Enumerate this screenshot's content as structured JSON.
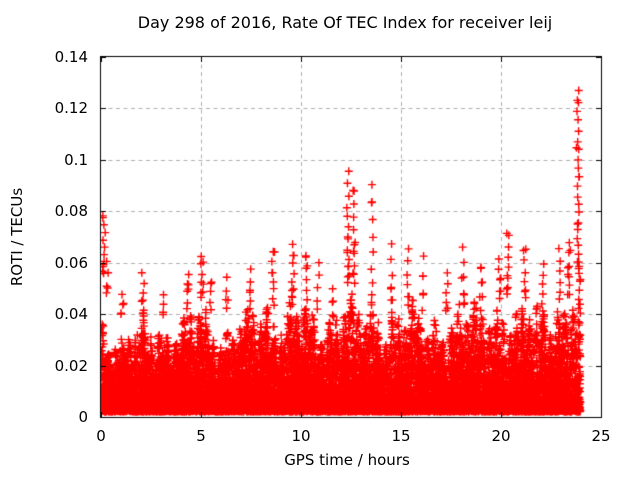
{
  "window": {
    "background": "#ffffff"
  },
  "chart_data": {
    "type": "scatter",
    "title": "Day 298 of 2016, Rate Of TEC Index for receiver leij",
    "xlabel": "GPS time / hours",
    "ylabel": "ROTI / TECUs",
    "xlim": [
      0,
      25
    ],
    "ylim": [
      0,
      0.14
    ],
    "xticks": [
      0,
      5,
      10,
      15,
      20,
      25
    ],
    "xtick_labels": [
      "0",
      "5",
      "10",
      "15",
      "20",
      "25"
    ],
    "yticks": [
      0,
      0.02,
      0.04,
      0.06,
      0.08,
      0.1,
      0.12,
      0.14
    ],
    "ytick_labels": [
      "0",
      "0.02",
      "0.04",
      "0.06",
      "0.08",
      "0.1",
      "0.12",
      "0.14"
    ],
    "grid": true,
    "grid_color": "#b0b0b0",
    "axis_color": "#000000",
    "marker": "plus",
    "marker_color": "#ff0000",
    "legend": "none",
    "x_data_range": [
      0,
      23.97
    ],
    "y_data_range": [
      0.002,
      0.127
    ],
    "scatter_model": {
      "seed": 2016298,
      "n_base_points": 15000,
      "y_floor": 0.0025,
      "tail_exponent": 2.8,
      "envelope_top_by_hour": [
        0.048,
        0.036,
        0.042,
        0.045,
        0.042,
        0.05,
        0.04,
        0.045,
        0.05,
        0.052,
        0.05,
        0.042,
        0.056,
        0.05,
        0.048,
        0.05,
        0.045,
        0.045,
        0.05,
        0.048,
        0.052,
        0.048,
        0.05,
        0.056,
        0.058
      ],
      "spikes": [
        {
          "x": 0.15,
          "y_top": 0.078,
          "y_base": 0.056,
          "n": 9
        },
        {
          "x": 0.3,
          "y_top": 0.06,
          "y_base": 0.048,
          "n": 4
        },
        {
          "x": 1.05,
          "y_top": 0.048,
          "y_base": 0.04,
          "n": 3
        },
        {
          "x": 2.1,
          "y_top": 0.056,
          "y_base": 0.042,
          "n": 5
        },
        {
          "x": 3.15,
          "y_top": 0.048,
          "y_base": 0.04,
          "n": 3
        },
        {
          "x": 4.35,
          "y_top": 0.056,
          "y_base": 0.042,
          "n": 5
        },
        {
          "x": 5.05,
          "y_top": 0.063,
          "y_base": 0.046,
          "n": 6
        },
        {
          "x": 5.5,
          "y_top": 0.052,
          "y_base": 0.042,
          "n": 4
        },
        {
          "x": 6.3,
          "y_top": 0.054,
          "y_base": 0.042,
          "n": 4
        },
        {
          "x": 7.5,
          "y_top": 0.057,
          "y_base": 0.042,
          "n": 5
        },
        {
          "x": 8.6,
          "y_top": 0.064,
          "y_base": 0.044,
          "n": 7
        },
        {
          "x": 9.6,
          "y_top": 0.067,
          "y_base": 0.044,
          "n": 8
        },
        {
          "x": 10.3,
          "y_top": 0.063,
          "y_base": 0.046,
          "n": 5
        },
        {
          "x": 10.85,
          "y_top": 0.06,
          "y_base": 0.042,
          "n": 5
        },
        {
          "x": 11.6,
          "y_top": 0.05,
          "y_base": 0.04,
          "n": 3
        },
        {
          "x": 12.35,
          "y_top": 0.095,
          "y_base": 0.052,
          "n": 12
        },
        {
          "x": 12.65,
          "y_top": 0.088,
          "y_base": 0.052,
          "n": 9
        },
        {
          "x": 13.55,
          "y_top": 0.09,
          "y_base": 0.048,
          "n": 8
        },
        {
          "x": 14.55,
          "y_top": 0.067,
          "y_base": 0.046,
          "n": 5
        },
        {
          "x": 15.35,
          "y_top": 0.065,
          "y_base": 0.044,
          "n": 6
        },
        {
          "x": 16.1,
          "y_top": 0.062,
          "y_base": 0.042,
          "n": 4
        },
        {
          "x": 17.3,
          "y_top": 0.056,
          "y_base": 0.042,
          "n": 5
        },
        {
          "x": 18.1,
          "y_top": 0.066,
          "y_base": 0.044,
          "n": 5
        },
        {
          "x": 19.0,
          "y_top": 0.058,
          "y_base": 0.042,
          "n": 4
        },
        {
          "x": 19.9,
          "y_top": 0.062,
          "y_base": 0.046,
          "n": 5
        },
        {
          "x": 20.35,
          "y_top": 0.071,
          "y_base": 0.048,
          "n": 7
        },
        {
          "x": 21.2,
          "y_top": 0.065,
          "y_base": 0.046,
          "n": 6
        },
        {
          "x": 22.1,
          "y_top": 0.06,
          "y_base": 0.044,
          "n": 5
        },
        {
          "x": 22.9,
          "y_top": 0.065,
          "y_base": 0.046,
          "n": 6
        },
        {
          "x": 23.4,
          "y_top": 0.068,
          "y_base": 0.048,
          "n": 6
        },
        {
          "x": 23.85,
          "y_top": 0.1265,
          "y_base": 0.056,
          "n": 22
        }
      ]
    }
  }
}
